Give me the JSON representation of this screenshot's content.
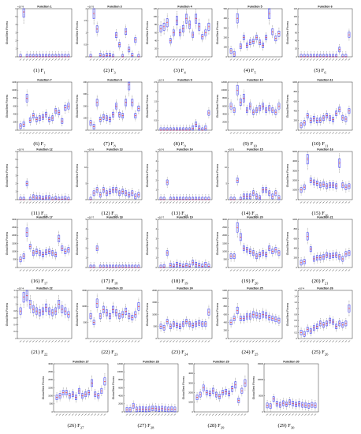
{
  "common": {
    "ylabel": "Global Best Fitness",
    "box_color": "#0000ff",
    "median_color": "#ff0000",
    "outlier_color": "#ff0000"
  },
  "captions": [
    "(1) F",
    "(2) F",
    "(3) F",
    "(4) F",
    "(5) F",
    "(6) F",
    "(7) F",
    "(8) F",
    "(9) F",
    "(10) F",
    "(11) F",
    "(12) F",
    "(13) F",
    "(14) F",
    "(15) F",
    "(16) F",
    "(17) F",
    "(18) F",
    "(19) F",
    "(20) F",
    "(21) F",
    "(22) F",
    "(23) F",
    "(24) F",
    "(25) F",
    "(26) F",
    "(27) F",
    "(28) F",
    "(29) F"
  ],
  "caption_subs": [
    "1",
    "3",
    "4",
    "5",
    "6",
    "7",
    "8",
    "9",
    "10",
    "11",
    "12",
    "13",
    "14",
    "15",
    "16",
    "17",
    "18",
    "19",
    "20",
    "21",
    "22",
    "23",
    "24",
    "25",
    "26",
    "27",
    "28",
    "29",
    "30"
  ],
  "chart_data": [
    {
      "type": "box",
      "title": "Function 1",
      "multiplier": "×10^9",
      "ylim": [
        0,
        6
      ],
      "yticks": [
        "0",
        "1",
        "2",
        "3",
        "4",
        "5",
        "6"
      ],
      "medians": [
        0,
        5.6,
        0,
        0,
        0,
        0,
        0,
        0,
        0,
        0,
        0,
        0,
        0,
        0,
        0,
        0
      ]
    },
    {
      "type": "box",
      "title": "Function 3",
      "multiplier": "×10^5",
      "ylim": [
        0,
        2
      ],
      "yticks": [
        "0",
        "0.5",
        "1",
        "1.5",
        "2"
      ],
      "medians": [
        0,
        1.8,
        1.15,
        0.05,
        0,
        0.05,
        0.05,
        0,
        0.9,
        0.5,
        0,
        1.05,
        0.3,
        0.05,
        0.7,
        0
      ]
    },
    {
      "type": "box",
      "title": "Function 4",
      "multiplier": "",
      "ylim": [
        0,
        120
      ],
      "yticks": [
        "0",
        "20",
        "40",
        "60",
        "80",
        "100",
        "120"
      ],
      "medians": [
        70,
        75,
        85,
        40,
        60,
        90,
        60,
        70,
        95,
        80,
        55,
        95,
        75,
        50,
        60,
        75
      ]
    },
    {
      "type": "box",
      "title": "Function 5",
      "multiplier": "",
      "ylim": [
        0,
        500
      ],
      "yticks": [
        "0",
        "100",
        "200",
        "300",
        "400",
        "500"
      ],
      "medians": [
        60,
        30,
        400,
        110,
        200,
        120,
        150,
        160,
        200,
        150,
        120,
        200,
        450,
        260,
        190,
        240
      ]
    },
    {
      "type": "box",
      "title": "Function 6",
      "multiplier": "",
      "ylim": [
        0,
        120
      ],
      "yticks": [
        "0",
        "20",
        "40",
        "60",
        "80",
        "100",
        "120"
      ],
      "medians": [
        0,
        0,
        0,
        0,
        0,
        0,
        0,
        0,
        0,
        0,
        0,
        0,
        18,
        0,
        0,
        55
      ]
    },
    {
      "type": "box",
      "title": "Function 7",
      "multiplier": "",
      "ylim": [
        0,
        1200
      ],
      "yticks": [
        "0",
        "200",
        "400",
        "600",
        "800",
        "1000",
        "1200"
      ],
      "medians": [
        100,
        150,
        800,
        250,
        360,
        270,
        300,
        330,
        390,
        270,
        300,
        480,
        440,
        230,
        560,
        600
      ]
    },
    {
      "type": "box",
      "title": "Function 8",
      "multiplier": "",
      "ylim": [
        0,
        400
      ],
      "yticks": [
        "0",
        "100",
        "200",
        "300",
        "400"
      ],
      "medians": [
        60,
        30,
        230,
        90,
        110,
        100,
        90,
        130,
        200,
        130,
        120,
        230,
        380,
        230,
        120,
        180
      ]
    },
    {
      "type": "box",
      "title": "Function 9",
      "multiplier": "×10^4",
      "ylim": [
        0,
        2.5
      ],
      "yticks": [
        "0",
        "0.5",
        "1",
        "1.5",
        "2",
        "2.5"
      ],
      "medians": [
        0,
        0,
        0,
        0,
        0,
        0,
        0,
        0,
        0,
        0,
        0.1,
        0.3,
        0.1,
        0,
        0.1,
        0.9
      ]
    },
    {
      "type": "box",
      "title": "Function 10",
      "multiplier": "",
      "ylim": [
        0,
        12000
      ],
      "yticks": [
        "0",
        "2000",
        "4000",
        "6000",
        "8000",
        "10000",
        "12000"
      ],
      "medians": [
        6000,
        5000,
        10000,
        7000,
        8000,
        5000,
        6000,
        4500,
        5000,
        5500,
        6000,
        5000,
        5500,
        5000,
        4500,
        6000
      ]
    },
    {
      "type": "box",
      "title": "Function 11",
      "multiplier": "",
      "ylim": [
        0,
        1000
      ],
      "yticks": [
        "0",
        "200",
        "400",
        "600",
        "800",
        "1000"
      ],
      "medians": [
        100,
        150,
        300,
        200,
        240,
        200,
        210,
        250,
        300,
        250,
        220,
        350,
        430,
        260,
        230,
        400
      ]
    },
    {
      "type": "box",
      "title": "Function 12",
      "multiplier": "×10^9",
      "ylim": [
        0,
        6
      ],
      "yticks": [
        "0",
        "1",
        "2",
        "3",
        "4",
        "5",
        "6"
      ],
      "medians": [
        0,
        0,
        2,
        0,
        0.3,
        0.2,
        0.2,
        0.1,
        0.2,
        0.2,
        0,
        0.1,
        0,
        0.05,
        0.1,
        0
      ]
    },
    {
      "type": "box",
      "title": "Function 13",
      "multiplier": "×10^8",
      "ylim": [
        0,
        15
      ],
      "yticks": [
        "0",
        "5",
        "10",
        "15"
      ],
      "medians": [
        0,
        2,
        3,
        1.5,
        3,
        2,
        2.5,
        3,
        3,
        2,
        2.5,
        2,
        1.5,
        2,
        1,
        1.5
      ]
    },
    {
      "type": "box",
      "title": "Function 14",
      "multiplier": "×10^6",
      "ylim": [
        0,
        5
      ],
      "yticks": [
        "0",
        "1",
        "2",
        "3",
        "4",
        "5"
      ],
      "medians": [
        0,
        0,
        1.8,
        0,
        0,
        0,
        0,
        0,
        0,
        0,
        0,
        0,
        0,
        0,
        0,
        0
      ]
    },
    {
      "type": "box",
      "title": "Function 15",
      "multiplier": "×10^5",
      "ylim": [
        0,
        15
      ],
      "yticks": [
        "0",
        "5",
        "10",
        "15"
      ],
      "medians": [
        0,
        0,
        6,
        0,
        1,
        1,
        1,
        2,
        1,
        0.5,
        3,
        3,
        2,
        1,
        2,
        0.5
      ]
    },
    {
      "type": "box",
      "title": "Function 16",
      "multiplier": "",
      "ylim": [
        0,
        5000
      ],
      "yticks": [
        "0",
        "1000",
        "2000",
        "3000",
        "4000",
        "5000"
      ],
      "medians": [
        1000,
        1300,
        4200,
        2000,
        1800,
        1700,
        1500,
        1600,
        1400,
        1500,
        1500,
        1400,
        3800,
        1500,
        1300,
        1400
      ]
    },
    {
      "type": "box",
      "title": "Function 17",
      "multiplier": "",
      "ylim": [
        0,
        3000
      ],
      "yticks": [
        "0",
        "500",
        "1000",
        "1500",
        "2000",
        "2500",
        "3000"
      ],
      "medians": [
        500,
        700,
        2200,
        1300,
        900,
        1000,
        900,
        800,
        950,
        1000,
        900,
        800,
        1800,
        1200,
        1000,
        1100
      ]
    },
    {
      "type": "box",
      "title": "Function 18",
      "multiplier": "×10^7",
      "ylim": [
        0,
        5
      ],
      "yticks": [
        "0",
        "1",
        "2",
        "3",
        "4",
        "5"
      ],
      "medians": [
        0,
        0,
        2,
        0,
        0,
        0,
        0,
        0,
        0,
        0,
        0,
        0,
        0,
        0,
        0,
        0
      ]
    },
    {
      "type": "box",
      "title": "Function 19",
      "multiplier": "×10^7",
      "ylim": [
        0,
        5
      ],
      "yticks": [
        "0",
        "1",
        "2",
        "3",
        "4",
        "5"
      ],
      "medians": [
        0,
        0.05,
        1.5,
        0.2,
        0.1,
        0.3,
        0.2,
        0.1,
        0.2,
        0.1,
        0.5,
        0.3,
        0.2,
        0.1,
        0.3,
        0.1
      ]
    },
    {
      "type": "box",
      "title": "Function 20",
      "multiplier": "",
      "ylim": [
        0,
        3000
      ],
      "yticks": [
        "0",
        "500",
        "1000",
        "1500",
        "2000",
        "2500",
        "3000"
      ],
      "medians": [
        700,
        700,
        2500,
        1900,
        1200,
        1100,
        1000,
        900,
        700,
        800,
        900,
        800,
        1200,
        1000,
        1100,
        900
      ]
    },
    {
      "type": "box",
      "title": "Function 21",
      "multiplier": "",
      "ylim": [
        0,
        1000
      ],
      "yticks": [
        "0",
        "200",
        "400",
        "600",
        "800",
        "1000"
      ],
      "medians": [
        100,
        120,
        650,
        380,
        180,
        200,
        210,
        220,
        260,
        240,
        250,
        260,
        220,
        180,
        280,
        300
      ]
    },
    {
      "type": "box",
      "title": "Function 22",
      "multiplier": "×10^4",
      "ylim": [
        0,
        1.4
      ],
      "yticks": [
        "0",
        "0.2",
        "0.4",
        "0.6",
        "0.8",
        "1",
        "1.2",
        "1.4"
      ],
      "medians": [
        0.8,
        1.2,
        1.25,
        1,
        0.85,
        0.8,
        0.75,
        0.8,
        0.9,
        0.8,
        0.75,
        0.8,
        1.0,
        0.85,
        0.8,
        0.7
      ]
    },
    {
      "type": "box",
      "title": "Function 23",
      "multiplier": "",
      "ylim": [
        0,
        1500
      ],
      "yticks": [
        "0",
        "500",
        "1000",
        "1500"
      ],
      "medians": [
        700,
        500,
        1100,
        700,
        900,
        800,
        700,
        900,
        800,
        700,
        750,
        850,
        700,
        650,
        750,
        1000
      ]
    },
    {
      "type": "box",
      "title": "Function 24",
      "multiplier": "",
      "ylim": [
        0,
        2000
      ],
      "yticks": [
        "0",
        "500",
        "1000",
        "1500",
        "2000"
      ],
      "medians": [
        500,
        450,
        700,
        500,
        600,
        550,
        500,
        600,
        700,
        600,
        550,
        600,
        650,
        600,
        600,
        1100
      ]
    },
    {
      "type": "box",
      "title": "Function 25",
      "multiplier": "",
      "ylim": [
        0,
        1200
      ],
      "yticks": [
        "0",
        "200",
        "400",
        "600",
        "800",
        "1000",
        "1200"
      ],
      "medians": [
        400,
        500,
        700,
        500,
        500,
        550,
        550,
        600,
        580,
        560,
        600,
        580,
        520,
        500,
        480,
        450
      ]
    },
    {
      "type": "box",
      "title": "Function 26",
      "multiplier": "×10^4",
      "ylim": [
        0,
        1.6
      ],
      "yticks": [
        "0",
        "0.2",
        "0.4",
        "0.6",
        "0.8",
        "1",
        "1.2",
        "1.4",
        "1.6"
      ],
      "medians": [
        0.2,
        0.15,
        0.3,
        0.25,
        0.35,
        0.4,
        0.5,
        0.45,
        0.5,
        0.6,
        0.55,
        0.4,
        0.5,
        0.45,
        0.5,
        1.0
      ]
    },
    {
      "type": "box",
      "title": "Function 27",
      "multiplier": "",
      "ylim": [
        0,
        3000
      ],
      "yticks": [
        "0",
        "500",
        "1000",
        "1500",
        "2000",
        "2500",
        "3000"
      ],
      "medians": [
        900,
        1000,
        1200,
        1200,
        1000,
        1100,
        900,
        1300,
        1000,
        1100,
        1200,
        1800,
        1100,
        1000,
        1300,
        1900
      ]
    },
    {
      "type": "box",
      "title": "Function 28",
      "multiplier": "",
      "ylim": [
        0,
        12000
      ],
      "yticks": [
        "0",
        "2000",
        "4000",
        "6000",
        "8000",
        "10000",
        "12000"
      ],
      "medians": [
        500,
        500,
        1500,
        600,
        700,
        700,
        600,
        700,
        900,
        800,
        700,
        800,
        700,
        600,
        700,
        600
      ]
    },
    {
      "type": "box",
      "title": "Function 29",
      "multiplier": "",
      "ylim": [
        0,
        5000
      ],
      "yticks": [
        "0",
        "1000",
        "2000",
        "3000",
        "4000",
        "5000"
      ],
      "medians": [
        1500,
        1800,
        2500,
        2000,
        1900,
        2200,
        1800,
        1600,
        2000,
        2100,
        1900,
        2400,
        2800,
        1200,
        2200,
        3000
      ]
    },
    {
      "type": "box",
      "title": "Function 30",
      "multiplier": "",
      "ylim": [
        0,
        15000
      ],
      "yticks": [
        "0",
        "5000",
        "10000",
        "15000"
      ],
      "medians": [
        2000,
        1800,
        4000,
        2500,
        2200,
        2700,
        2400,
        3000,
        2600,
        2300,
        2500,
        2200,
        2100,
        1900,
        2200,
        2000
      ]
    }
  ]
}
